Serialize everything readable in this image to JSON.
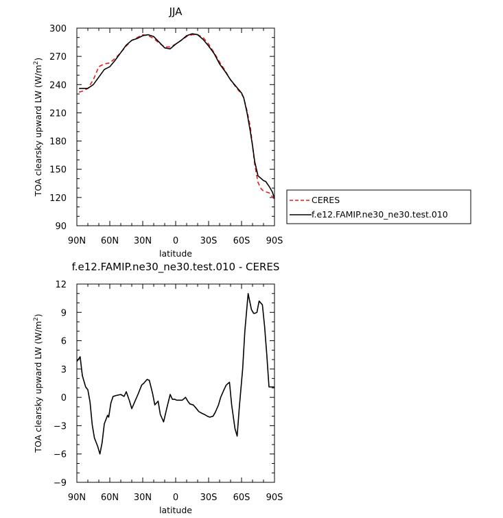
{
  "chart_data": [
    {
      "type": "line",
      "title": "JJA",
      "xlabel": "latitude",
      "ylabel": "TOA clearsky upward LW (W/m",
      "ylabel_sup": "2",
      "ylabel_end": ")",
      "xlim": [
        -90,
        90
      ],
      "ylim": [
        90,
        300
      ],
      "x_ticks": [
        -90,
        -60,
        -30,
        0,
        30,
        60,
        90
      ],
      "x_tick_labels": [
        "90N",
        "60N",
        "30N",
        "0",
        "30S",
        "60S",
        "90S"
      ],
      "y_ticks": [
        90,
        120,
        150,
        180,
        210,
        240,
        270,
        300
      ],
      "y_tick_labels": [
        "90",
        "120",
        "150",
        "180",
        "210",
        "240",
        "270",
        "300"
      ],
      "legend_position": "right",
      "series": [
        {
          "name": "CERES",
          "color": "#e41a1c",
          "dash": "dashed",
          "x": [
            -88,
            -85,
            -80,
            -75,
            -70,
            -65,
            -60,
            -55,
            -50,
            -45,
            -40,
            -35,
            -30,
            -25,
            -20,
            -15,
            -10,
            -5,
            0,
            5,
            10,
            15,
            20,
            25,
            30,
            35,
            40,
            45,
            50,
            55,
            60,
            62,
            65,
            68,
            70,
            72,
            75,
            78,
            80,
            82,
            85,
            88,
            90
          ],
          "y": [
            232,
            233,
            236,
            245,
            259,
            262,
            263,
            268,
            274,
            281,
            287,
            290,
            293,
            292,
            289,
            284,
            280,
            280,
            283,
            287,
            291,
            293,
            293,
            290,
            283,
            274,
            264,
            255,
            245,
            237,
            230,
            226,
            212,
            195,
            175,
            155,
            136,
            129,
            127,
            126,
            125,
            121,
            118
          ]
        },
        {
          "name": "f.e12.FAMIP.ne30_ne30.test.010",
          "color": "#000000",
          "dash": "solid",
          "x": [
            -88,
            -85,
            -80,
            -75,
            -70,
            -65,
            -60,
            -55,
            -50,
            -45,
            -40,
            -35,
            -30,
            -25,
            -20,
            -15,
            -10,
            -5,
            0,
            5,
            10,
            15,
            20,
            25,
            30,
            35,
            40,
            45,
            50,
            55,
            60,
            62,
            65,
            68,
            70,
            72,
            75,
            78,
            80,
            82,
            85,
            88,
            90
          ],
          "y": [
            236,
            236,
            236,
            240,
            248,
            256,
            259,
            266,
            274,
            282,
            287,
            289,
            292,
            293,
            291,
            285,
            279,
            278,
            283,
            287,
            292,
            294,
            293,
            288,
            281,
            273,
            262,
            254,
            245,
            238,
            231,
            226,
            210,
            190,
            175,
            158,
            143,
            140,
            138,
            137,
            132,
            126,
            119
          ]
        }
      ]
    },
    {
      "type": "line",
      "title": "f.e12.FAMIP.ne30_ne30.test.010 - CERES",
      "xlabel": "latitude",
      "ylabel": "TOA clearsky upward LW (W/m",
      "ylabel_sup": "2",
      "ylabel_end": ")",
      "xlim": [
        -90,
        90
      ],
      "ylim": [
        -9,
        12
      ],
      "x_ticks": [
        -90,
        -60,
        -30,
        0,
        30,
        60,
        90
      ],
      "x_tick_labels": [
        "90N",
        "60N",
        "30N",
        "0",
        "30S",
        "60S",
        "90S"
      ],
      "y_ticks": [
        -9,
        -6,
        -3,
        0,
        3,
        6,
        9,
        12
      ],
      "y_tick_labels": [
        "−9",
        "−6",
        "−3",
        "0",
        "3",
        "6",
        "9",
        "12"
      ],
      "series": [
        {
          "color": "#000000",
          "dash": "solid",
          "x": [
            -90,
            -87,
            -85,
            -82,
            -80,
            -78,
            -76,
            -74,
            -71,
            -69,
            -67,
            -65,
            -62,
            -61,
            -59,
            -57,
            -54,
            -50,
            -47,
            -45,
            -42,
            -40,
            -37,
            -34,
            -31,
            -29,
            -26,
            -24,
            -21,
            -19,
            -16,
            -14,
            -11,
            -8,
            -5,
            -3,
            -1,
            1,
            4,
            6,
            9,
            11,
            13,
            16,
            19,
            21,
            24,
            26,
            29,
            31,
            34,
            36,
            39,
            41,
            44,
            46,
            49,
            51,
            54,
            56,
            58,
            61,
            63,
            66,
            69,
            71,
            72,
            74,
            76,
            79,
            81,
            83,
            85,
            87,
            89,
            90
          ],
          "y": [
            3.8,
            4.3,
            2.3,
            1.1,
            0.8,
            -0.5,
            -2.9,
            -4.3,
            -5.2,
            -6.0,
            -4.8,
            -2.8,
            -1.9,
            -2.1,
            -0.6,
            0.1,
            0.2,
            0.3,
            0.1,
            0.6,
            -0.4,
            -1.2,
            -0.4,
            0.4,
            1.3,
            1.5,
            1.9,
            1.8,
            0.4,
            -0.8,
            -0.4,
            -1.8,
            -2.6,
            -1.1,
            0.3,
            -0.2,
            -0.2,
            -0.3,
            -0.3,
            -0.3,
            0.0,
            -0.4,
            -0.7,
            -0.8,
            -1.2,
            -1.5,
            -1.7,
            -1.8,
            -2.0,
            -2.1,
            -2.0,
            -1.6,
            -0.8,
            0.0,
            0.8,
            1.3,
            1.6,
            -0.8,
            -3.3,
            -4.1,
            -1.0,
            3.0,
            7.0,
            11.0,
            9.3,
            8.9,
            8.9,
            9.0,
            10.2,
            9.8,
            7.5,
            4.5,
            1.1,
            1.1,
            1.1,
            1.1
          ]
        }
      ]
    }
  ]
}
